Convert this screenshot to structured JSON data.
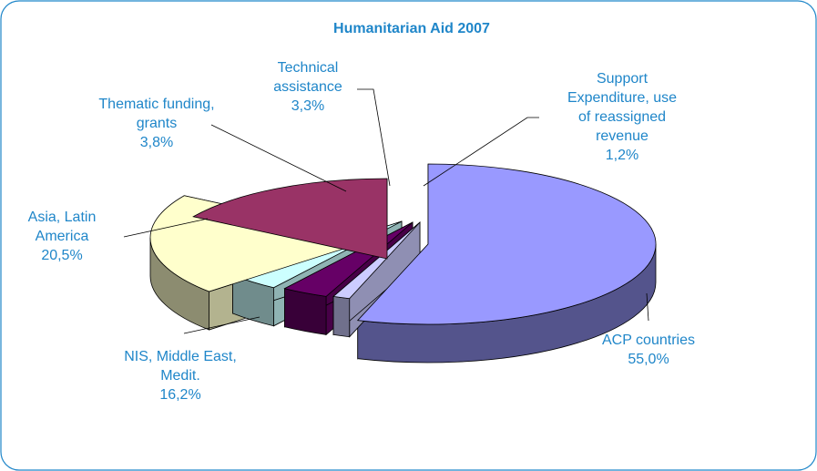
{
  "chart_data": {
    "type": "pie",
    "title": "Humanitarian Aid 2007",
    "title_color": "#1f86c9",
    "label_color": "#1f86c9",
    "frame_color": "#1f86c9",
    "three_d": true,
    "slices": [
      {
        "key": "acp",
        "label_lines": [
          "ACP countries"
        ],
        "value_text": "55,0%",
        "value": 55.0,
        "color": "#9999ff"
      },
      {
        "key": "support",
        "label_lines": [
          "Support",
          "Expenditure, use",
          "of reassigned",
          "revenue"
        ],
        "value_text": "1,2%",
        "value": 1.2,
        "color": "#ccccff"
      },
      {
        "key": "technical",
        "label_lines": [
          "Technical",
          "assistance"
        ],
        "value_text": "3,3%",
        "value": 3.3,
        "color": "#660066"
      },
      {
        "key": "thematic",
        "label_lines": [
          "Thematic funding,",
          "grants"
        ],
        "value_text": "3,8%",
        "value": 3.8,
        "color": "#ccffff"
      },
      {
        "key": "asia",
        "label_lines": [
          "Asia, Latin",
          "America"
        ],
        "value_text": "20,5%",
        "value": 20.5,
        "color": "#ffffcc"
      },
      {
        "key": "nis",
        "label_lines": [
          "NIS, Middle East,",
          "Medit."
        ],
        "value_text": "16,2%",
        "value": 16.2,
        "color": "#993366"
      }
    ]
  }
}
